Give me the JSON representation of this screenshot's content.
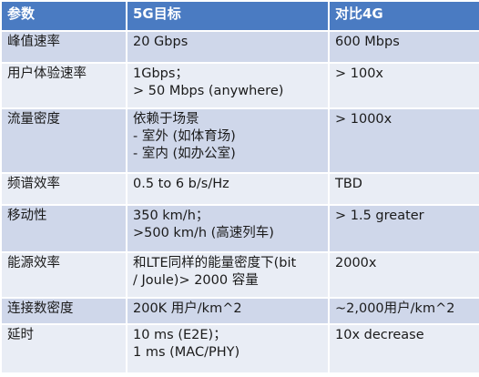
{
  "table": {
    "headers": [
      "参数",
      "5G目标",
      "对比4G"
    ],
    "rows": [
      {
        "param": "峰值速率",
        "target": [
          "20 Gbps"
        ],
        "compare": [
          "600 Mbps"
        ]
      },
      {
        "param": "用户体验速率",
        "target": [
          "1Gbps；",
          "> 50 Mbps (anywhere)"
        ],
        "compare": [
          "> 100x"
        ]
      },
      {
        "param": "流量密度",
        "target": [
          "依赖于场景",
          "- 室外 (如体育场)",
          "- 室内 (如办公室)"
        ],
        "compare": [
          "> 1000x"
        ]
      },
      {
        "param": "频谱效率",
        "target": [
          "0.5 to 6 b/s/Hz"
        ],
        "compare": [
          "TBD"
        ]
      },
      {
        "param": "移动性",
        "target": [
          "350 km/h；",
          ">500 km/h (高速列车)"
        ],
        "compare": [
          "> 1.5 greater"
        ]
      },
      {
        "param": "能源效率",
        "target": [
          "和LTE同样的能量密度下(bit",
          "/ Joule)> 2000 容量"
        ],
        "compare": [
          "2000x"
        ]
      },
      {
        "param": "连接数密度",
        "target": [
          "200K 用户/km^2"
        ],
        "compare": [
          "~2,000用户/km^2"
        ]
      },
      {
        "param": "延时",
        "target": [
          "10 ms (E2E)；",
          "1 ms (MAC/PHY)"
        ],
        "compare": [
          "10x decrease"
        ]
      }
    ]
  },
  "colors": {
    "header_bg": "#4a7bc2",
    "row_odd": "#cfd7ea",
    "row_even": "#e9edf5"
  }
}
